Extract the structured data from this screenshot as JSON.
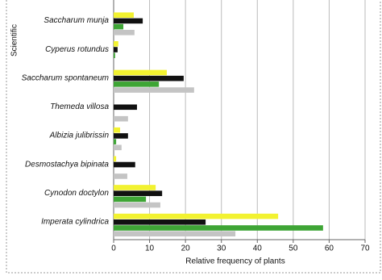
{
  "chart_data": {
    "type": "barh",
    "y_label": "Scientific",
    "x_label": "Relative frequency of plants",
    "categories": [
      "Saccharum munja",
      "Cyperus rotundus",
      "Saccharum spontaneum",
      "Themeda villosa",
      "Albizia julibrissin",
      "Desmostachya bipinata",
      "Cynodon doctylon",
      "Imperata cylindrica"
    ],
    "series": [
      {
        "color": "#f2f230",
        "values": [
          5.6,
          1.3,
          14.8,
          0,
          1.8,
          0.7,
          11.7,
          45.8
        ]
      },
      {
        "color": "#111111",
        "values": [
          8.1,
          1.1,
          19.5,
          6.5,
          4,
          6,
          13.5,
          25.6
        ]
      },
      {
        "color": "#3ea535",
        "values": [
          2.7,
          0.4,
          12.6,
          0,
          0.7,
          0,
          9,
          58.3
        ]
      },
      {
        "color": "#c4c4c4",
        "values": [
          5.8,
          0,
          22.4,
          4,
          2.2,
          3.8,
          13,
          33.9
        ]
      }
    ],
    "xlim": [
      0,
      70
    ],
    "xticks": [
      0,
      10,
      20,
      30,
      40,
      50,
      60,
      70
    ],
    "grid": true
  }
}
